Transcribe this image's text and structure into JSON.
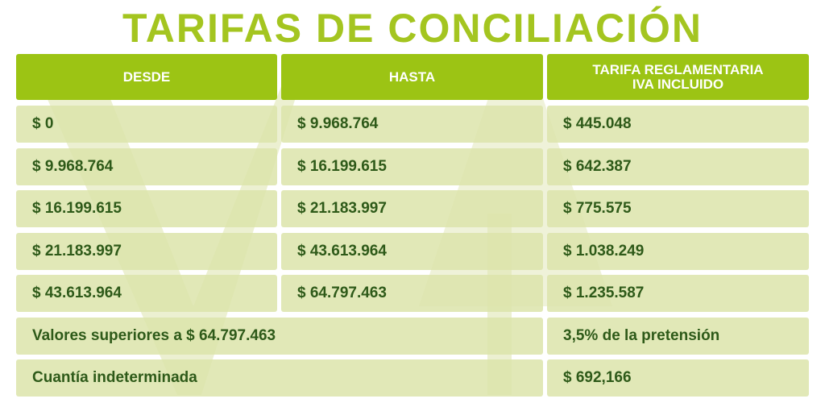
{
  "title": "TARIFAS DE CONCILIACIÓN",
  "table": {
    "header": [
      "DESDE",
      "HASTA",
      "TARIFA REGLAMENTARIA\nIVA INCLUIDO"
    ],
    "rows": [
      [
        "$ 0",
        "$ 9.968.764",
        "$ 445.048"
      ],
      [
        "$ 9.968.764",
        "$ 16.199.615",
        "$ 642.387"
      ],
      [
        "$ 16.199.615",
        "$ 21.183.997",
        "$ 775.575"
      ],
      [
        "$ 21.183.997",
        "$ 43.613.964",
        "$ 1.038.249"
      ],
      [
        "$ 43.613.964",
        "$ 64.797.463",
        "$ 1.235.587"
      ]
    ],
    "footer_rows": [
      [
        "Valores superiores a $ 64.797.463",
        "3,5% de la pretensión"
      ],
      [
        "Cuantía indeterminada",
        "$ 692,166"
      ]
    ]
  }
}
